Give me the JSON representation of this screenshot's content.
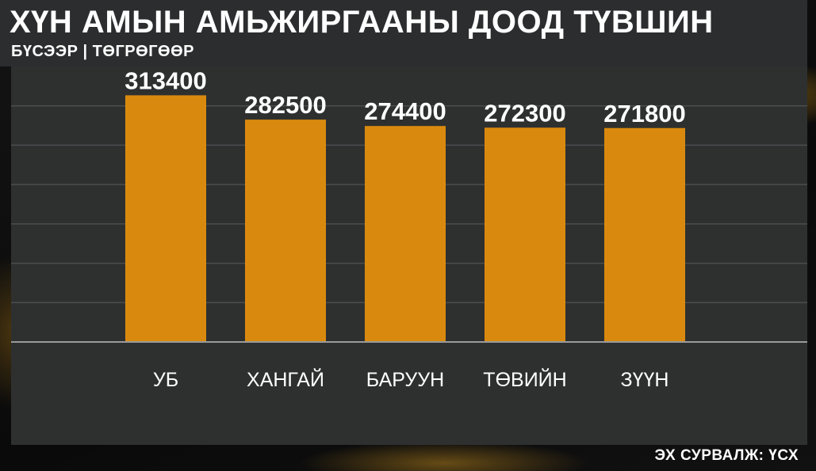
{
  "header": {
    "title": "ХҮН АМЫН АМЬЖИРГААНЫ ДООД ТҮВШИН",
    "subtitle": "БҮСЭЭР | ТӨГРӨГӨӨР"
  },
  "footer": {
    "source": "ЭХ СУРВАЛЖ: ҮСХ"
  },
  "colors": {
    "bar": "#d98a0e",
    "panel": "#2e3030",
    "gridline": "#4b4d4e",
    "baseline": "#9a9a9a"
  },
  "chart_data": {
    "type": "bar",
    "title": "ХҮН АМЫН АМЬЖИРГААНЫ ДООД ТҮВШИН",
    "subtitle": "БҮСЭЭР | ТӨГРӨГӨӨР",
    "categories": [
      "УБ",
      "ХАНГАЙ",
      "БАРУУН",
      "ТӨВИЙН",
      "ЗҮҮН"
    ],
    "values": [
      313400,
      282500,
      274400,
      272300,
      271800
    ],
    "value_labels": [
      "313400",
      "282500",
      "274400",
      "272300",
      "271800"
    ],
    "xlabel": "",
    "ylabel": "",
    "ylim": [
      0,
      350000
    ],
    "grid": true,
    "legend": "none"
  }
}
